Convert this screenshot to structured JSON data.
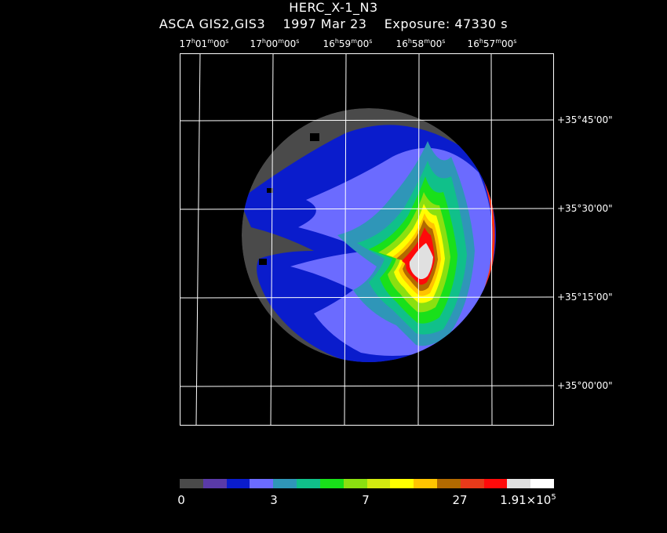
{
  "header": {
    "title": "HERC_X-1_N3",
    "instrument": "ASCA GIS2,GIS3",
    "date": "1997 Mar 23",
    "exposure": "Exposure: 47330 s"
  },
  "ra_axis": [
    {
      "h": "17",
      "m": "01",
      "s": "00"
    },
    {
      "h": "17",
      "m": "00",
      "s": "00"
    },
    {
      "h": "16",
      "m": "59",
      "s": "00"
    },
    {
      "h": "16",
      "m": "58",
      "s": "00"
    },
    {
      "h": "16",
      "m": "57",
      "s": "00"
    }
  ],
  "dec_axis": [
    "+35°45'00\"",
    "+35°30'00\"",
    "+35°15'00\"",
    "+35°00'00\""
  ],
  "colorbar": {
    "colors": [
      "#4a4a4a",
      "#5a3aa8",
      "#0a1ccc",
      "#6b6bff",
      "#2f96b8",
      "#10c08a",
      "#19e01a",
      "#8be010",
      "#d2ea10",
      "#ffff00",
      "#ffc400",
      "#b26a00",
      "#e83a1a",
      "#ff0a0a",
      "#e0e0e0",
      "#ffffff"
    ],
    "labels": [
      {
        "text": "0"
      },
      {
        "text": "3"
      },
      {
        "text": "7"
      },
      {
        "text": "27"
      },
      {
        "text": "1.91×10",
        "sup": "5"
      }
    ]
  }
}
